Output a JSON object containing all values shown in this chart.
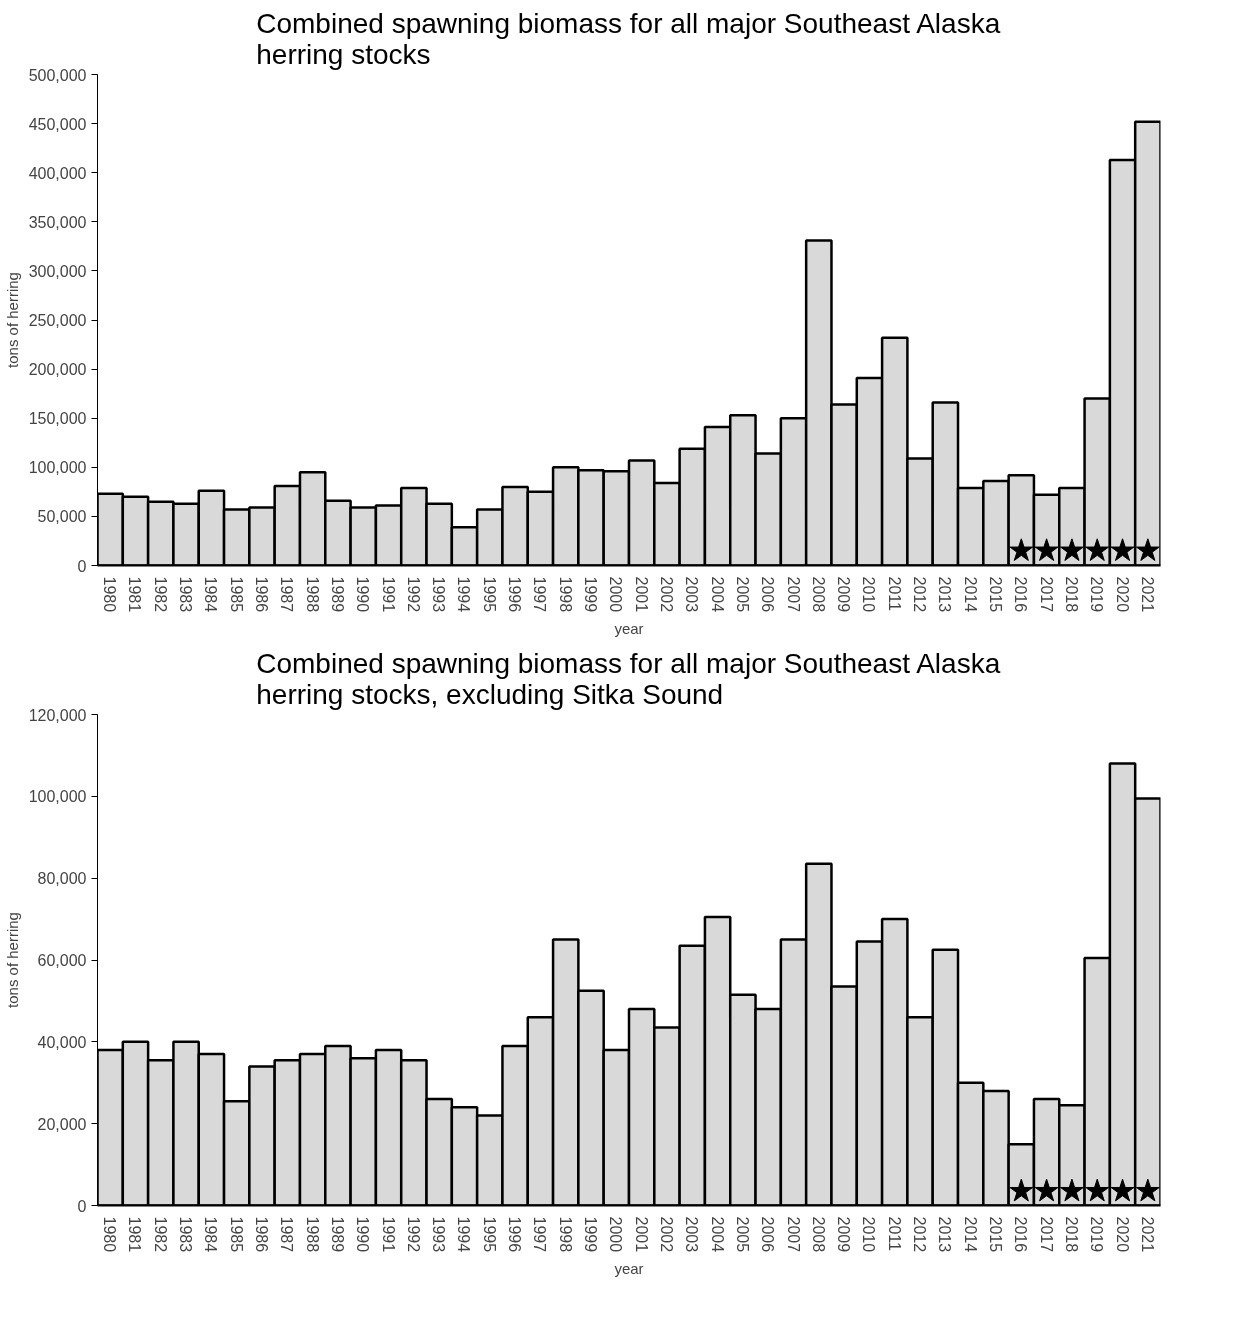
{
  "chart_data": [
    {
      "type": "bar",
      "title": "Combined spawning biomass for all major Southeast Alaska\nherring stocks",
      "xlabel": "year",
      "ylabel": "tons of herring",
      "categories": [
        "1980",
        "1981",
        "1982",
        "1983",
        "1984",
        "1985",
        "1986",
        "1987",
        "1988",
        "1989",
        "1990",
        "1991",
        "1992",
        "1993",
        "1994",
        "1995",
        "1996",
        "1997",
        "1998",
        "1999",
        "2000",
        "2001",
        "2002",
        "2003",
        "2004",
        "2005",
        "2006",
        "2007",
        "2008",
        "2009",
        "2010",
        "2011",
        "2012",
        "2013",
        "2014",
        "2015",
        "2016",
        "2017",
        "2018",
        "2019",
        "2020",
        "2021"
      ],
      "series": [
        {
          "color": "#d9d9d9",
          "values": [
            73000,
            70000,
            65000,
            63000,
            76000,
            57000,
            59000,
            81000,
            95000,
            66000,
            59000,
            61000,
            79000,
            63000,
            39000,
            57000,
            80000,
            75000,
            100000,
            97000,
            96000,
            107000,
            84000,
            119000,
            141000,
            153000,
            114000,
            150000,
            331000,
            164000,
            191000,
            232000,
            109000,
            166000,
            79000,
            86000,
            92000,
            72000,
            79000,
            170000,
            413000,
            452000
          ]
        },
        {
          "type": "scatter",
          "marker": "star",
          "color": "#000000",
          "values": [
            null,
            null,
            null,
            null,
            null,
            null,
            null,
            null,
            null,
            null,
            null,
            null,
            null,
            null,
            null,
            null,
            null,
            null,
            null,
            null,
            null,
            null,
            null,
            null,
            null,
            null,
            null,
            null,
            null,
            null,
            null,
            null,
            null,
            null,
            null,
            null,
            15000,
            15000,
            15000,
            15000,
            15000,
            15000
          ]
        }
      ],
      "ylim": [
        0,
        500000
      ],
      "yticks": [
        {
          "value": 0,
          "label": "0"
        },
        {
          "value": 50000,
          "label": "50,000"
        },
        {
          "value": 100000,
          "label": "100,000"
        },
        {
          "value": 150000,
          "label": "150,000"
        },
        {
          "value": 200000,
          "label": "200,000"
        },
        {
          "value": 250000,
          "label": "250,000"
        },
        {
          "value": 300000,
          "label": "300,000"
        },
        {
          "value": 350000,
          "label": "350,000"
        },
        {
          "value": 400000,
          "label": "400,000"
        },
        {
          "value": 450000,
          "label": "450,000"
        },
        {
          "value": 500000,
          "label": "500,000"
        }
      ],
      "grid": false
    },
    {
      "type": "bar",
      "title": "Combined spawning biomass for all major Southeast Alaska\nherring stocks, excluding Sitka Sound",
      "xlabel": "year",
      "ylabel": "tons of herring",
      "categories": [
        "1980",
        "1981",
        "1982",
        "1983",
        "1984",
        "1985",
        "1986",
        "1987",
        "1988",
        "1989",
        "1990",
        "1991",
        "1992",
        "1993",
        "1994",
        "1995",
        "1996",
        "1997",
        "1998",
        "1999",
        "2000",
        "2001",
        "2002",
        "2003",
        "2004",
        "2005",
        "2006",
        "2007",
        "2008",
        "2009",
        "2010",
        "2011",
        "2012",
        "2013",
        "2014",
        "2015",
        "2016",
        "2017",
        "2018",
        "2019",
        "2020",
        "2021"
      ],
      "series": [
        {
          "color": "#d9d9d9",
          "values": [
            38000,
            40000,
            35500,
            40000,
            37000,
            25500,
            34000,
            35500,
            37000,
            39000,
            36000,
            38000,
            35500,
            26000,
            24000,
            22000,
            39000,
            46000,
            65000,
            52500,
            38000,
            48000,
            43500,
            63500,
            70500,
            51500,
            48000,
            65000,
            83500,
            53500,
            64500,
            70000,
            46000,
            62500,
            30000,
            28000,
            15000,
            26000,
            24500,
            60500,
            108000,
            99500
          ]
        },
        {
          "type": "scatter",
          "marker": "star",
          "color": "#000000",
          "values": [
            null,
            null,
            null,
            null,
            null,
            null,
            null,
            null,
            null,
            null,
            null,
            null,
            null,
            null,
            null,
            null,
            null,
            null,
            null,
            null,
            null,
            null,
            null,
            null,
            null,
            null,
            null,
            null,
            null,
            null,
            null,
            null,
            null,
            null,
            null,
            null,
            3500,
            3500,
            3500,
            3500,
            3500,
            3500
          ]
        }
      ],
      "ylim": [
        0,
        120000
      ],
      "yticks": [
        {
          "value": 0,
          "label": "0"
        },
        {
          "value": 20000,
          "label": "20,000"
        },
        {
          "value": 40000,
          "label": "40,000"
        },
        {
          "value": 60000,
          "label": "60,000"
        },
        {
          "value": 80000,
          "label": "80,000"
        },
        {
          "value": 100000,
          "label": "100,000"
        },
        {
          "value": 120000,
          "label": "120,000"
        }
      ],
      "grid": false
    }
  ]
}
